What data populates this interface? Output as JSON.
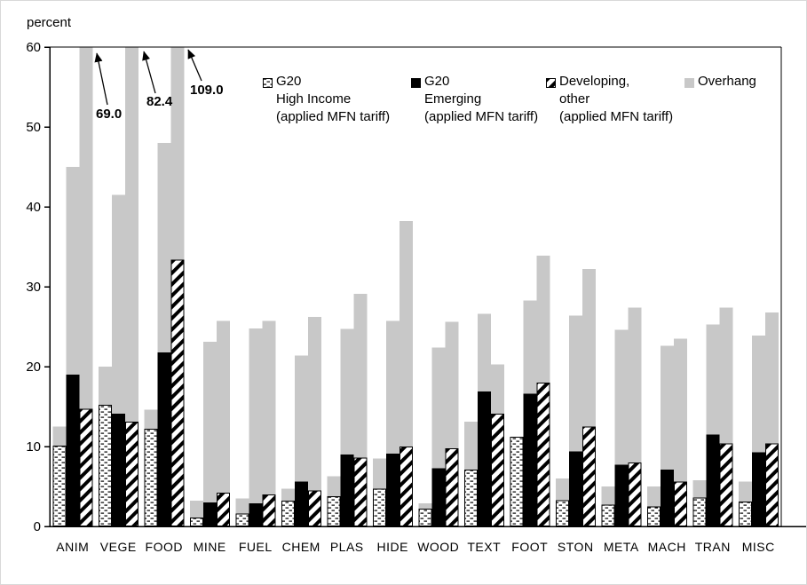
{
  "chart_data": {
    "type": "bar",
    "title": "",
    "unit_label": "percent",
    "xlabel": "",
    "ylabel": "percent",
    "ylim": [
      0,
      60
    ],
    "yticks": [
      0,
      10,
      20,
      30,
      40,
      50,
      60
    ],
    "grid": "none (top and right plot border only)",
    "legend_position": "top inside plot area",
    "categories": [
      "ANIM",
      "VEGE",
      "FOOD",
      "MINE",
      "FUEL",
      "CHEM",
      "PLAS",
      "HIDE",
      "WOOD",
      "TEXT",
      "FOOT",
      "STON",
      "META",
      "MACH",
      "TRAN",
      "MISC"
    ],
    "series": [
      {
        "key": "g20_high_income",
        "name": "G20 High Income (applied MFN tariff)",
        "pattern": "dotted",
        "applied_mfn_tariff": [
          10.1,
          15.2,
          12.2,
          1.1,
          1.6,
          3.2,
          3.8,
          4.7,
          2.2,
          7.1,
          11.2,
          3.3,
          2.7,
          2.5,
          3.6,
          3.1
        ],
        "bound_rate_with_overhang": [
          12.5,
          20.0,
          14.6,
          3.2,
          3.5,
          4.7,
          6.3,
          8.5,
          2.9,
          13.1,
          11.2,
          6.0,
          5.0,
          5.0,
          5.8,
          5.6
        ]
      },
      {
        "key": "g20_emerging",
        "name": "G20 Emerging (applied MFN tariff)",
        "pattern": "solid-black",
        "applied_mfn_tariff": [
          19.0,
          14.1,
          21.8,
          3.0,
          2.9,
          5.6,
          9.0,
          9.1,
          7.3,
          16.9,
          16.6,
          9.4,
          7.7,
          7.1,
          11.5,
          9.3
        ],
        "bound_rate_with_overhang": [
          45.0,
          41.5,
          48.0,
          23.1,
          24.8,
          21.4,
          24.7,
          25.7,
          22.4,
          26.6,
          28.3,
          26.4,
          24.6,
          22.6,
          25.3,
          23.9
        ]
      },
      {
        "key": "developing_other",
        "name": "Developing, other (applied MFN tariff)",
        "pattern": "diagonal-hatch",
        "applied_mfn_tariff": [
          14.7,
          13.1,
          33.4,
          4.2,
          4.0,
          4.5,
          8.6,
          10.0,
          9.8,
          14.1,
          18.0,
          12.5,
          8.0,
          5.6,
          10.4,
          10.4
        ],
        "bound_rate_with_overhang": [
          69.0,
          82.4,
          109.0,
          25.7,
          25.7,
          26.2,
          29.1,
          38.2,
          25.6,
          20.3,
          33.9,
          32.2,
          27.4,
          23.5,
          27.4,
          26.8
        ]
      }
    ],
    "overhang_note": "Overhang drawn as light-gray bars behind each applied-tariff bar, from 0 up to the bound rate; bars above 60 are truncated at the axis top",
    "colors": {
      "overhang_gray": "#c8c8c8",
      "bar_black": "#000000",
      "axis": "#000000"
    },
    "legend": [
      {
        "swatch": "dotted",
        "lines": [
          "G20",
          "High Income",
          "(applied MFN tariff)"
        ]
      },
      {
        "swatch": "solid-black",
        "lines": [
          "G20",
          "Emerging",
          "(applied MFN tariff)"
        ]
      },
      {
        "swatch": "diagonal-hatch",
        "lines": [
          "Developing,",
          "other",
          "(applied MFN tariff)"
        ]
      },
      {
        "swatch": "solid-gray",
        "lines": [
          "Overhang"
        ]
      }
    ],
    "annotations": [
      {
        "label": "69.0",
        "category": "ANIM",
        "series": "developing_other",
        "meaning": "true bound rate of truncated bar"
      },
      {
        "label": "82.4",
        "category": "VEGE",
        "series": "developing_other",
        "meaning": "true bound rate of truncated bar"
      },
      {
        "label": "109.0",
        "category": "FOOD",
        "series": "developing_other",
        "meaning": "true bound rate of truncated bar"
      }
    ]
  }
}
